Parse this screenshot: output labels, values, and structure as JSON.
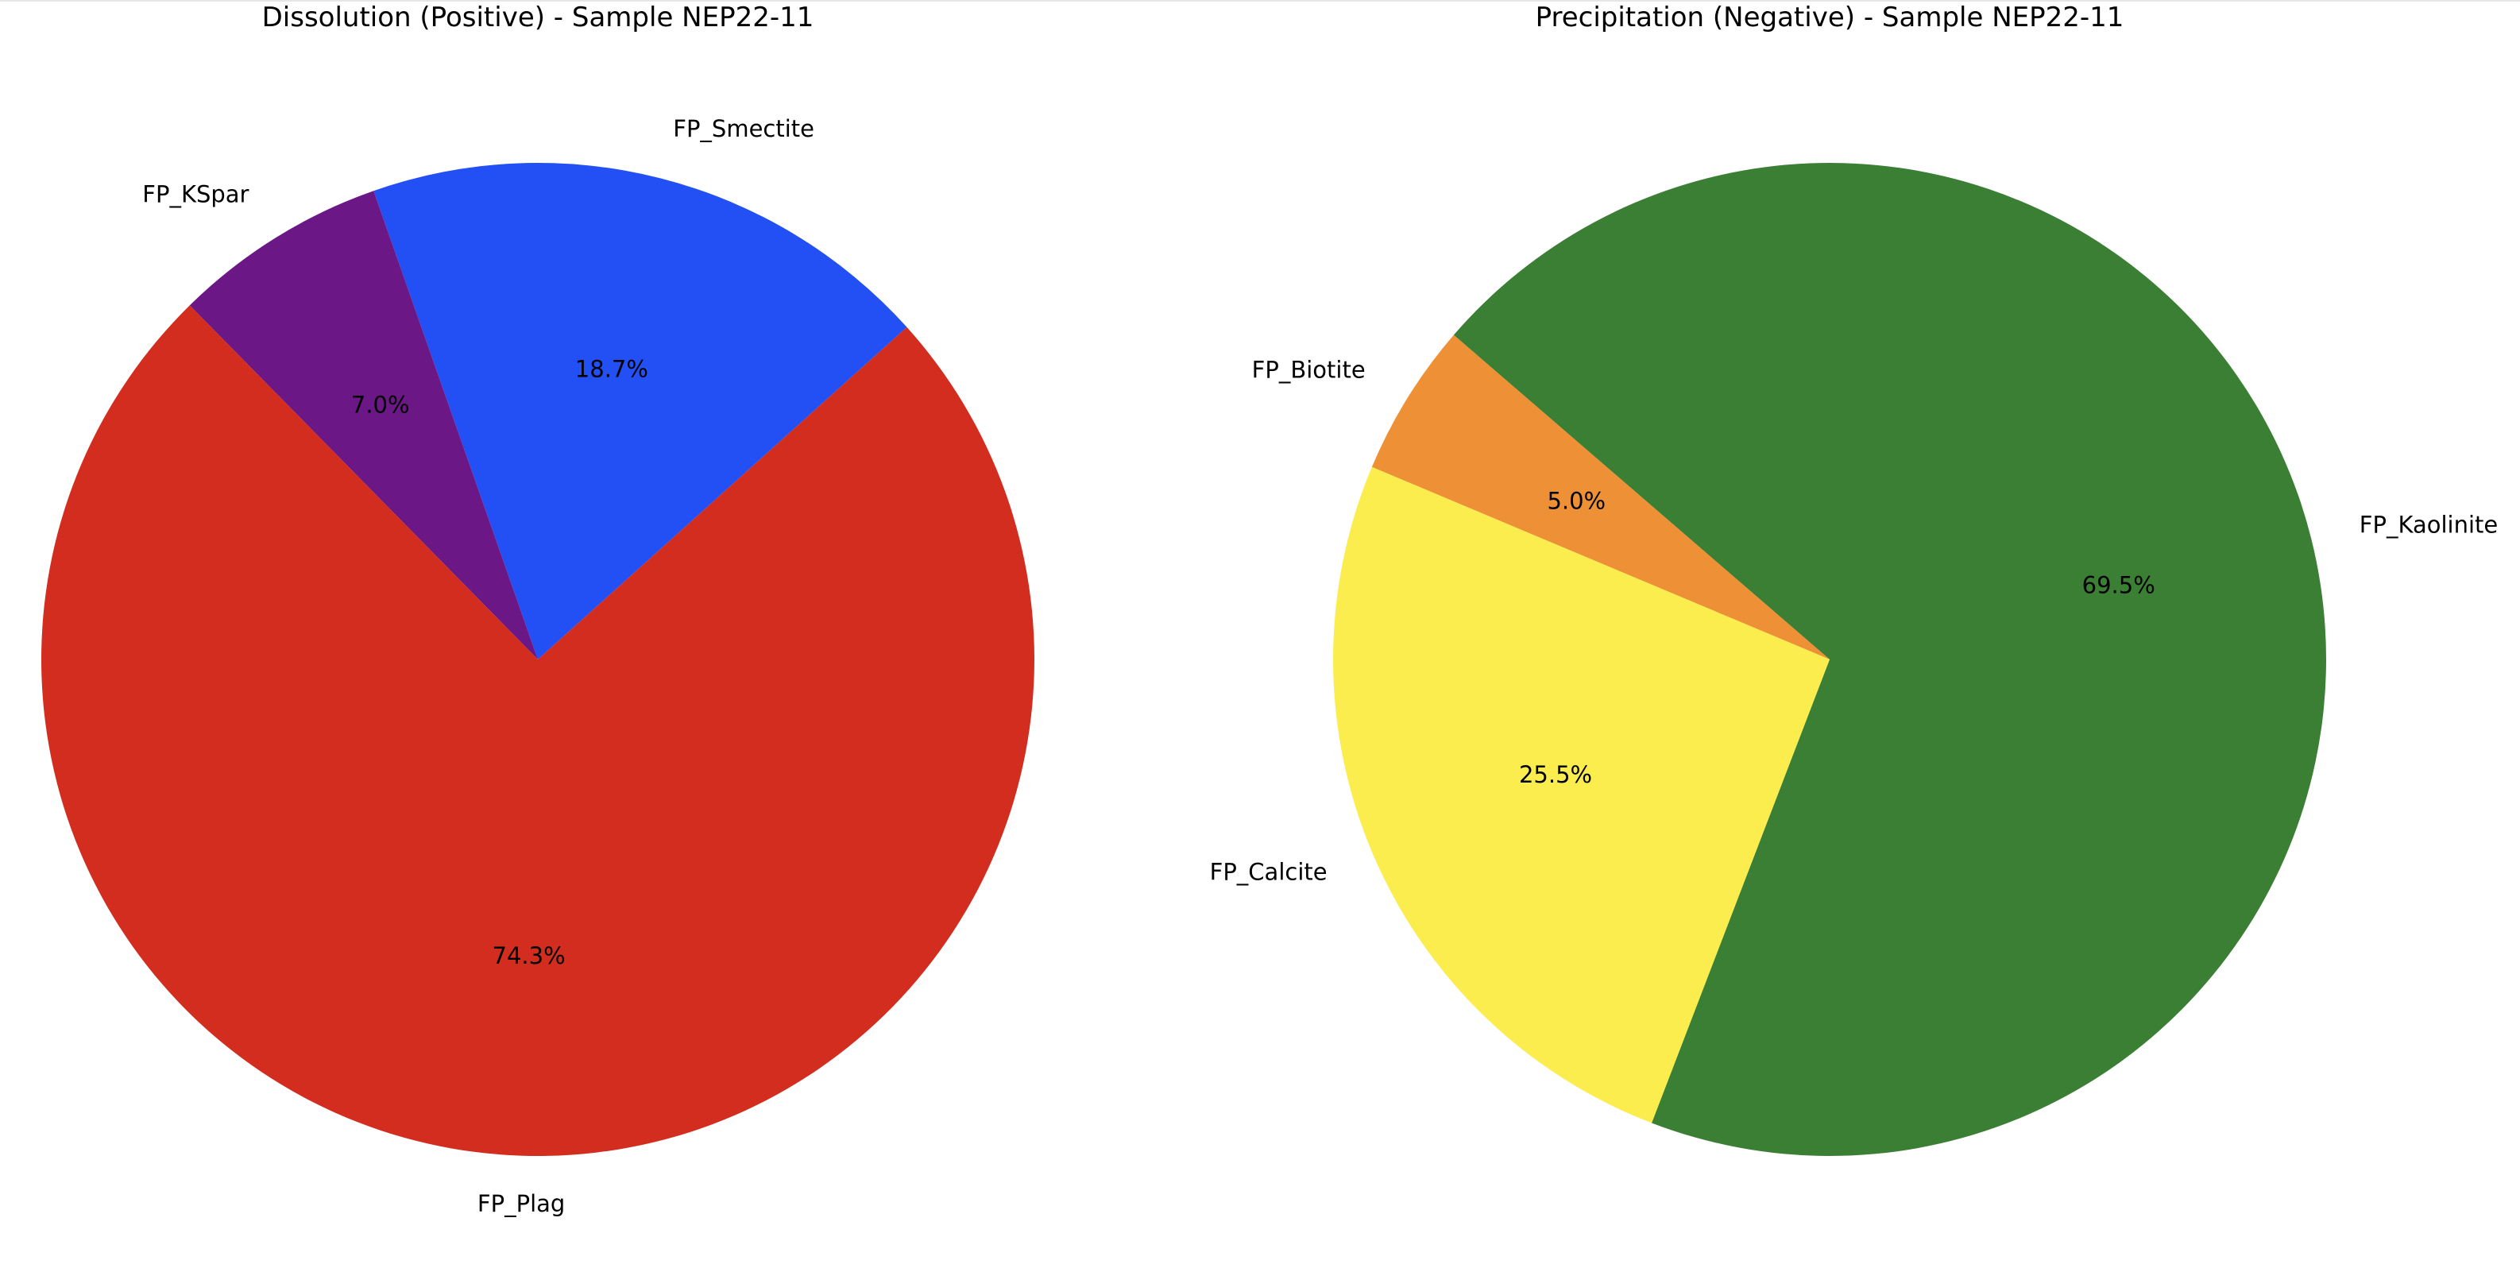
{
  "chart_data": [
    {
      "type": "pie",
      "title": "Dissolution (Positive) - Sample NEP22-11",
      "categories": [
        "FP_Smectite",
        "FP_KSpar",
        "FP_Plag"
      ],
      "values": [
        18.7,
        7.0,
        74.3
      ],
      "percent_labels": [
        "18.7%",
        "7.0%",
        "74.3%"
      ],
      "colors": [
        "#2250f4",
        "#6b1886",
        "#d22d1f"
      ],
      "start_angle_deg": 42,
      "direction": "counterclockwise"
    },
    {
      "type": "pie",
      "title": "Precipitation (Negative) - Sample NEP22-11",
      "categories": [
        "FP_Kaolinite",
        "FP_Biotite",
        "FP_Calcite"
      ],
      "values": [
        69.5,
        5.0,
        25.5
      ],
      "percent_labels": [
        "69.5%",
        "5.0%",
        "25.5%"
      ],
      "colors": [
        "#3a7f34",
        "#ee9035",
        "#fced4f"
      ],
      "start_angle_deg": -111,
      "direction": "counterclockwise"
    }
  ]
}
